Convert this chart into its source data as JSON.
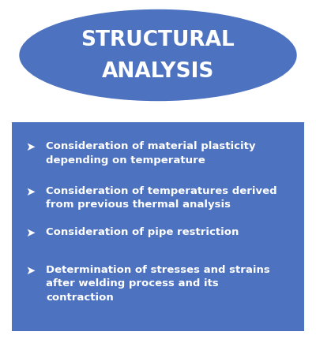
{
  "title_line1": "STRUCTURAL",
  "title_line2": "ANALYSIS",
  "title_color": "#ffffff",
  "title_fontsize": 19,
  "ellipse_color": "#4D72C0",
  "box_color": "#4D72C0",
  "box_text_color": "#ffffff",
  "bullet_char": "➤",
  "bullet_items": [
    "Consideration of material plasticity\ndepending on temperature",
    "Consideration of temperatures derived\nfrom previous thermal analysis",
    "Consideration of pipe restriction",
    "Determination of stresses and strains\nafter welding process and its\ncontraction"
  ],
  "item_fontsize": 9.5,
  "background_color": "#ffffff",
  "fig_width": 4.0,
  "fig_height": 4.31
}
